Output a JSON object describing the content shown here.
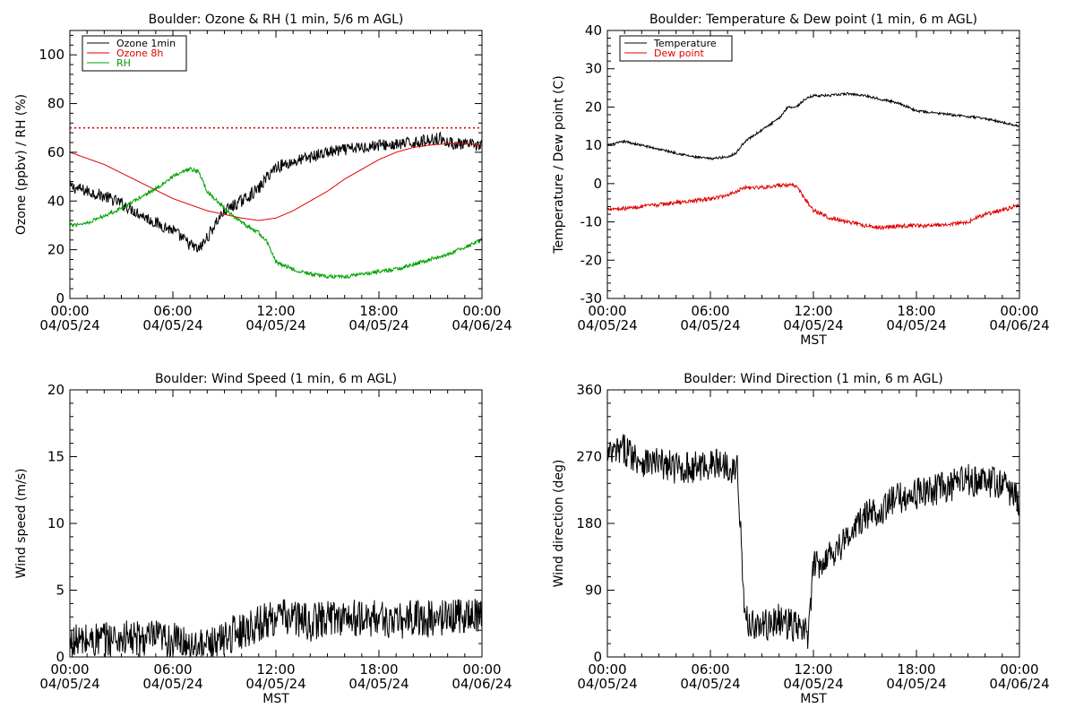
{
  "panels": [
    {
      "title": "Boulder: Ozone & RH (1 min, 5/6 m AGL)",
      "ylabel": "Ozone (ppbv) / RH (%)",
      "xlabel": "",
      "legend": [
        "Ozone 1min",
        "Ozone 8h",
        "RH"
      ]
    },
    {
      "title": "Boulder: Temperature & Dew point (1 min, 6 m AGL)",
      "ylabel": "Temperature / Dew point (C)",
      "xlabel": "MST",
      "legend": [
        "Temperature",
        "Dew point"
      ]
    },
    {
      "title": "Boulder: Wind Speed (1 min, 6 m AGL)",
      "ylabel": "Wind speed (m/s)",
      "xlabel": "MST",
      "legend": []
    },
    {
      "title": "Boulder: Wind Direction (1 min, 6 m AGL)",
      "ylabel": "Wind direction (deg)",
      "xlabel": "MST",
      "legend": []
    }
  ],
  "x_ticks": [
    {
      "time": "00:00",
      "date": "04/05/24"
    },
    {
      "time": "06:00",
      "date": "04/05/24"
    },
    {
      "time": "12:00",
      "date": "04/05/24"
    },
    {
      "time": "18:00",
      "date": "04/05/24"
    },
    {
      "time": "00:00",
      "date": "04/06/24"
    }
  ],
  "chart_data": [
    {
      "type": "line",
      "title": "Boulder: Ozone & RH (1 min, 5/6 m AGL)",
      "xlabel": "",
      "ylabel": "Ozone (ppbv) / RH (%)",
      "x_unit": "hours since 04/05/24 00:00 MST",
      "xlim": [
        0,
        24
      ],
      "ylim": [
        0,
        110
      ],
      "yticks": [
        0,
        20,
        40,
        60,
        80,
        100
      ],
      "grid": false,
      "legend_position": "top-left",
      "reference_line": {
        "y": 70,
        "color": "#e00000",
        "style": "dotted"
      },
      "series": [
        {
          "name": "Ozone 1min",
          "color": "#000000",
          "noise": 2.5,
          "points": [
            [
              0,
              46
            ],
            [
              1,
              44
            ],
            [
              2,
              42
            ],
            [
              3,
              39
            ],
            [
              4,
              35
            ],
            [
              5,
              31
            ],
            [
              6,
              28
            ],
            [
              7,
              22
            ],
            [
              7.5,
              20
            ],
            [
              8,
              25
            ],
            [
              8.5,
              31
            ],
            [
              9,
              36
            ],
            [
              10,
              40
            ],
            [
              11,
              45
            ],
            [
              11.6,
              51
            ],
            [
              12,
              54
            ],
            [
              13,
              56
            ],
            [
              14,
              58
            ],
            [
              15,
              60
            ],
            [
              16,
              61
            ],
            [
              17,
              62
            ],
            [
              18,
              63
            ],
            [
              19,
              63
            ],
            [
              20,
              64
            ],
            [
              21,
              65
            ],
            [
              21.5,
              66
            ],
            [
              22,
              64
            ],
            [
              23,
              63
            ],
            [
              24,
              63
            ]
          ]
        },
        {
          "name": "Ozone 8h",
          "color": "#e00000",
          "noise": 0,
          "points": [
            [
              0,
              60
            ],
            [
              2,
              55
            ],
            [
              4,
              48
            ],
            [
              6,
              41
            ],
            [
              8,
              36
            ],
            [
              10,
              33
            ],
            [
              11,
              32
            ],
            [
              12,
              33
            ],
            [
              13,
              36
            ],
            [
              14,
              40
            ],
            [
              15,
              44
            ],
            [
              16,
              49
            ],
            [
              17,
              53
            ],
            [
              18,
              57
            ],
            [
              19,
              60
            ],
            [
              20,
              62
            ],
            [
              21,
              63
            ],
            [
              22,
              63.5
            ],
            [
              23,
              63.5
            ],
            [
              24,
              63
            ]
          ]
        },
        {
          "name": "RH",
          "color": "#00a000",
          "noise": 0.8,
          "points": [
            [
              0,
              30
            ],
            [
              1,
              31
            ],
            [
              2,
              34
            ],
            [
              3,
              37
            ],
            [
              4,
              41
            ],
            [
              5,
              45
            ],
            [
              6,
              50
            ],
            [
              7,
              53
            ],
            [
              7.5,
              52
            ],
            [
              8,
              44
            ],
            [
              9,
              37
            ],
            [
              10,
              31
            ],
            [
              11,
              27
            ],
            [
              11.5,
              23
            ],
            [
              12,
              15
            ],
            [
              13,
              12
            ],
            [
              14,
              10
            ],
            [
              15,
              9
            ],
            [
              16,
              9
            ],
            [
              17,
              10
            ],
            [
              18,
              11
            ],
            [
              19,
              12
            ],
            [
              20,
              14
            ],
            [
              21,
              16
            ],
            [
              22,
              18
            ],
            [
              23,
              21
            ],
            [
              24,
              24
            ]
          ]
        }
      ]
    },
    {
      "type": "line",
      "title": "Boulder: Temperature & Dew point (1 min, 6 m AGL)",
      "xlabel": "MST",
      "ylabel": "Temperature / Dew point (C)",
      "x_unit": "hours since 04/05/24 00:00 MST",
      "xlim": [
        0,
        24
      ],
      "ylim": [
        -30,
        40
      ],
      "yticks": [
        -30,
        -20,
        -10,
        0,
        10,
        20,
        30,
        40
      ],
      "grid": false,
      "legend_position": "top-left",
      "series": [
        {
          "name": "Temperature",
          "color": "#000000",
          "noise": 0.3,
          "points": [
            [
              0,
              10
            ],
            [
              1,
              11
            ],
            [
              2,
              10
            ],
            [
              3,
              9
            ],
            [
              4,
              8
            ],
            [
              5,
              7
            ],
            [
              6,
              6.5
            ],
            [
              7,
              7
            ],
            [
              7.5,
              8
            ],
            [
              8,
              11
            ],
            [
              9,
              14
            ],
            [
              10,
              17
            ],
            [
              10.5,
              20
            ],
            [
              11,
              20
            ],
            [
              11.5,
              22
            ],
            [
              12,
              23
            ],
            [
              13,
              23
            ],
            [
              14,
              23.5
            ],
            [
              15,
              23
            ],
            [
              16,
              22
            ],
            [
              17,
              21
            ],
            [
              18,
              19
            ],
            [
              19,
              18.5
            ],
            [
              20,
              18
            ],
            [
              21,
              17.5
            ],
            [
              22,
              17
            ],
            [
              23,
              16
            ],
            [
              24,
              15
            ]
          ]
        },
        {
          "name": "Dew point",
          "color": "#e00000",
          "noise": 0.5,
          "points": [
            [
              0,
              -6.5
            ],
            [
              1,
              -6.5
            ],
            [
              2,
              -6
            ],
            [
              3,
              -5.5
            ],
            [
              4,
              -5
            ],
            [
              5,
              -4.5
            ],
            [
              6,
              -4
            ],
            [
              7,
              -3
            ],
            [
              8,
              -1
            ],
            [
              9,
              -1
            ],
            [
              10,
              -0.5
            ],
            [
              11,
              -0.5
            ],
            [
              11.5,
              -4
            ],
            [
              12,
              -7
            ],
            [
              13,
              -9
            ],
            [
              14,
              -10
            ],
            [
              15,
              -11
            ],
            [
              16,
              -11.5
            ],
            [
              17,
              -11
            ],
            [
              18,
              -11
            ],
            [
              19,
              -11
            ],
            [
              20,
              -10.5
            ],
            [
              21,
              -10
            ],
            [
              22,
              -8
            ],
            [
              23,
              -7
            ],
            [
              24,
              -5.5
            ]
          ]
        }
      ]
    },
    {
      "type": "line",
      "title": "Boulder: Wind Speed (1 min, 6 m AGL)",
      "xlabel": "MST",
      "ylabel": "Wind speed (m/s)",
      "x_unit": "hours since 04/05/24 00:00 MST",
      "xlim": [
        0,
        24
      ],
      "ylim": [
        0,
        20
      ],
      "yticks": [
        0,
        5,
        10,
        15,
        20
      ],
      "grid": false,
      "series": [
        {
          "color": "#000000",
          "noise": 1.4,
          "floor": 0,
          "points": [
            [
              0,
              1
            ],
            [
              1,
              1.2
            ],
            [
              2,
              1.3
            ],
            [
              3,
              1.4
            ],
            [
              4,
              1.3
            ],
            [
              5,
              1.4
            ],
            [
              6,
              1.2
            ],
            [
              7,
              1
            ],
            [
              8,
              0.6
            ],
            [
              9,
              1.5
            ],
            [
              10,
              2
            ],
            [
              11,
              2.5
            ],
            [
              12,
              3
            ],
            [
              13,
              3
            ],
            [
              14,
              2.5
            ],
            [
              15,
              3
            ],
            [
              16,
              3
            ],
            [
              17,
              2.8
            ],
            [
              18,
              3
            ],
            [
              19,
              2.5
            ],
            [
              20,
              3
            ],
            [
              21,
              2.8
            ],
            [
              22,
              3
            ],
            [
              23,
              3.2
            ],
            [
              24,
              3
            ]
          ]
        }
      ]
    },
    {
      "type": "line",
      "title": "Boulder: Wind Direction (1 min, 6 m AGL)",
      "xlabel": "MST",
      "ylabel": "Wind direction (deg)",
      "x_unit": "hours since 04/05/24 00:00 MST",
      "xlim": [
        0,
        24
      ],
      "ylim": [
        0,
        360
      ],
      "yticks": [
        0,
        90,
        180,
        270,
        360
      ],
      "grid": false,
      "series": [
        {
          "color": "#000000",
          "noise": 22,
          "floor": 0,
          "ceil": 360,
          "points": [
            [
              0,
              270
            ],
            [
              1,
              280
            ],
            [
              2,
              265
            ],
            [
              3,
              260
            ],
            [
              4,
              255
            ],
            [
              5,
              255
            ],
            [
              6,
              260
            ],
            [
              7,
              260
            ],
            [
              7.6,
              250
            ],
            [
              8,
              50
            ],
            [
              9,
              40
            ],
            [
              10,
              50
            ],
            [
              11,
              40
            ],
            [
              11.7,
              30
            ],
            [
              12,
              120
            ],
            [
              13,
              140
            ],
            [
              14,
              160
            ],
            [
              15,
              190
            ],
            [
              16,
              200
            ],
            [
              17,
              215
            ],
            [
              18,
              220
            ],
            [
              19,
              225
            ],
            [
              20,
              230
            ],
            [
              21,
              240
            ],
            [
              22,
              235
            ],
            [
              23,
              235
            ],
            [
              24,
              210
            ]
          ]
        }
      ]
    }
  ]
}
